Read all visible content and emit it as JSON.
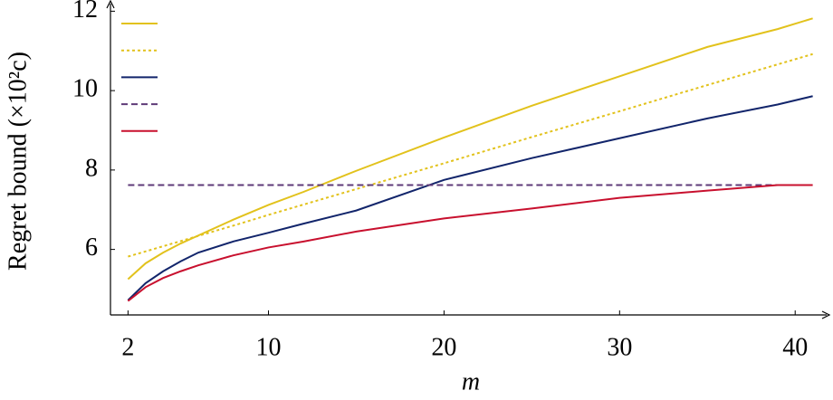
{
  "chart_data": {
    "type": "line",
    "xlabel": "m",
    "ylabel": "Regret bound (×10²c)",
    "x": [
      2,
      3,
      4,
      5,
      6,
      8,
      10,
      12,
      15,
      20,
      25,
      30,
      35,
      39,
      41
    ],
    "series": [
      {
        "color": "#e2c21c",
        "dash": "solid",
        "values": [
          5.25,
          5.65,
          5.92,
          6.15,
          6.35,
          6.75,
          7.12,
          7.45,
          7.98,
          8.82,
          9.62,
          10.36,
          11.1,
          11.55,
          11.82
        ]
      },
      {
        "color": "#e2c21c",
        "dash": "dotted",
        "values": [
          5.82,
          5.95,
          6.08,
          6.21,
          6.34,
          6.6,
          6.87,
          7.13,
          7.52,
          8.17,
          8.83,
          9.48,
          10.14,
          10.66,
          10.92
        ]
      },
      {
        "color": "#12256b",
        "dash": "solid",
        "values": [
          4.72,
          5.15,
          5.45,
          5.7,
          5.92,
          6.2,
          6.42,
          6.65,
          6.98,
          7.75,
          8.3,
          8.8,
          9.3,
          9.65,
          9.86
        ]
      },
      {
        "color": "#5e3a78",
        "dash": "dashed",
        "values": [
          7.62,
          7.62,
          7.62,
          7.62,
          7.62,
          7.62,
          7.62,
          7.62,
          7.62,
          7.62,
          7.62,
          7.62,
          7.62,
          7.62,
          7.62
        ]
      },
      {
        "color": "#c8102e",
        "dash": "solid",
        "values": [
          4.7,
          5.05,
          5.28,
          5.45,
          5.6,
          5.85,
          6.05,
          6.2,
          6.45,
          6.78,
          7.03,
          7.3,
          7.48,
          7.62,
          7.62
        ]
      }
    ],
    "xlim": [
      1,
      42
    ],
    "xticks": [
      2,
      10,
      20,
      30,
      40
    ],
    "ylim": [
      4.35,
      12.1
    ],
    "yticks": [
      6,
      8,
      10,
      12
    ],
    "legend": "top-left",
    "grid": false
  }
}
